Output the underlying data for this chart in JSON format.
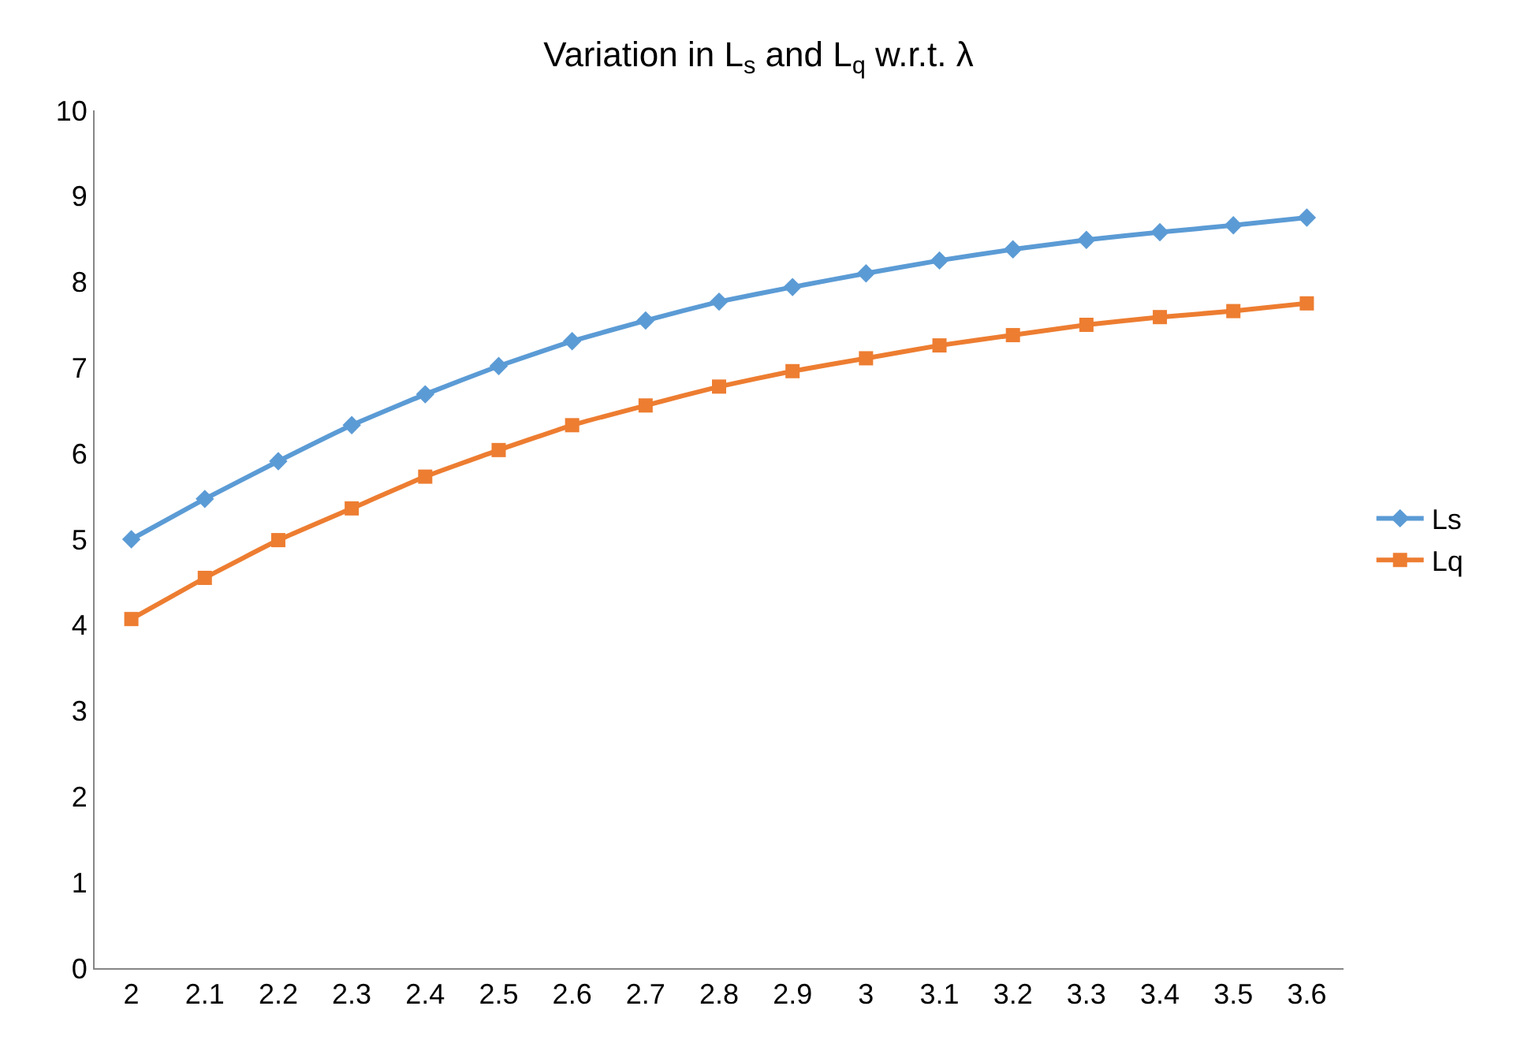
{
  "chart_data": {
    "type": "line",
    "title": "Variation in L$_{s}$ and L$_{q}$ w.r.t. λ",
    "categories": [
      "2",
      "2.1",
      "2.2",
      "2.3",
      "2.4",
      "2.5",
      "2.6",
      "2.7",
      "2.8",
      "2.9",
      "3",
      "3.1",
      "3.2",
      "3.3",
      "3.4",
      "3.5",
      "3.6"
    ],
    "series": [
      {
        "name": "Ls",
        "color": "#5b9bd5",
        "marker": "diamond",
        "values": [
          5.0,
          5.47,
          5.91,
          6.33,
          6.69,
          7.02,
          7.31,
          7.55,
          7.77,
          7.94,
          8.1,
          8.25,
          8.38,
          8.49,
          8.58,
          8.66,
          8.75
        ]
      },
      {
        "name": "Lq",
        "color": "#ed7d31",
        "marker": "square",
        "values": [
          4.07,
          4.55,
          4.99,
          5.36,
          5.73,
          6.04,
          6.33,
          6.56,
          6.78,
          6.96,
          7.11,
          7.26,
          7.38,
          7.5,
          7.59,
          7.66,
          7.75
        ]
      }
    ],
    "ylim": [
      0,
      10
    ],
    "yticks": [
      0,
      1,
      2,
      3,
      4,
      5,
      6,
      7,
      8,
      9,
      10
    ],
    "grid": false,
    "legend": "right",
    "line_style": "solid"
  }
}
